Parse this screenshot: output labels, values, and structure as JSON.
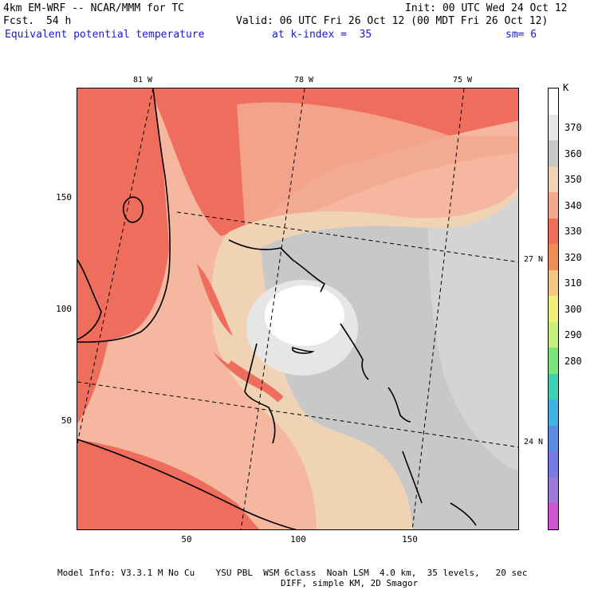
{
  "header": {
    "model_line": "4km EM-WRF -- NCAR/MMM for TC",
    "fcst_label": "Fcst.",
    "fcst_value": "54 h",
    "init": "Init: 00 UTC Wed 24 Oct 12",
    "valid": "Valid: 06 UTC Fri 26 Oct 12 (00 MDT Fri 26 Oct 12)",
    "field_name": "Equivalent potential temperature",
    "level": "at k-index =  35",
    "smoothing": "sm= 6"
  },
  "map": {
    "lon_labels": [
      "81 W",
      "78 W",
      "75 W"
    ],
    "lat_labels": [
      "27 N",
      "24 N"
    ],
    "x_ticks": [
      "50",
      "100",
      "150"
    ],
    "y_ticks": [
      "150",
      "100",
      "50"
    ],
    "background_color": "#f0b8a0"
  },
  "colorbar": {
    "unit": "K",
    "labels": [
      "370",
      "360",
      "350",
      "340",
      "330",
      "320",
      "310",
      "300",
      "290",
      "280"
    ],
    "colors": [
      "#ffffff",
      "#e6e6e6",
      "#c8c8c8",
      "#f0d2b4",
      "#f5a890",
      "#f06e5a",
      "#f08c55",
      "#f5c882",
      "#f0f078",
      "#c8f078",
      "#78e678",
      "#3cd2b4",
      "#3cb4e6",
      "#5a8ce6",
      "#7878e6",
      "#a078dc",
      "#d250d2"
    ]
  },
  "footer": {
    "line1": "Model Info: V3.3.1 M No Cu    YSU PBL  WSM 6class  Noah LSM  4.0 km,  35 levels,   20 sec",
    "line2": "DIFF, simple KM, 2D Smagor"
  }
}
